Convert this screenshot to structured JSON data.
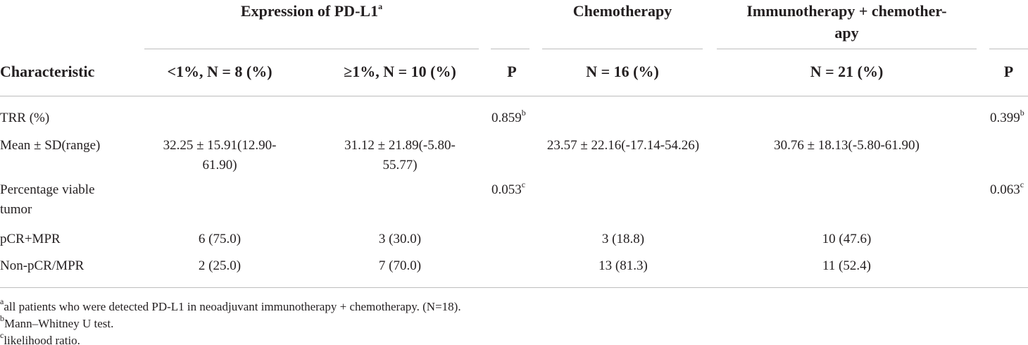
{
  "table": {
    "group_headers": {
      "expression": {
        "text": "Expression of PD-L1",
        "note": "a"
      },
      "chemo": "Chemotherapy",
      "immuno": [
        "Immunotherapy + chemother-",
        "apy"
      ]
    },
    "columns": [
      "Characteristic",
      "<1%, N = 8 (%)",
      "≥1%, N = 10 (%)",
      "P",
      "N = 16 (%)",
      "N = 21 (%)",
      "P"
    ],
    "rows": [
      {
        "label": "TRR (%)",
        "p1": {
          "text": "0.859",
          "note": "b"
        },
        "p2": {
          "text": "0.399",
          "note": "b"
        }
      },
      {
        "label": "Mean ± SD(range)",
        "cells": [
          "32.25 ± 15.91(12.90-61.90)",
          "31.12 ± 21.89(-5.80-55.77)",
          "23.57 ± 22.16(-17.14-54.26)",
          "30.76 ± 18.13(-5.80-61.90)"
        ]
      },
      {
        "label": "Percentage viable tumor",
        "p1": {
          "text": "0.053",
          "note": "c"
        },
        "p2": {
          "text": "0.063",
          "note": "c"
        }
      },
      {
        "label": "pCR+MPR",
        "cells": [
          "6 (75.0)",
          "3 (30.0)",
          "3 (18.8)",
          "10 (47.6)"
        ]
      },
      {
        "label": "Non-pCR/MPR",
        "cells": [
          "2 (25.0)",
          "7 (70.0)",
          "13 (81.3)",
          "11 (52.4)"
        ]
      }
    ],
    "footnotes": [
      {
        "mark": "a",
        "text": "all patients who were detected PD-L1 in neoadjuvant immunotherapy + chemotherapy. (N=18)."
      },
      {
        "mark": "b",
        "text": "Mann–Whitney U test."
      },
      {
        "mark": "c",
        "text": "likelihood ratio."
      }
    ]
  }
}
